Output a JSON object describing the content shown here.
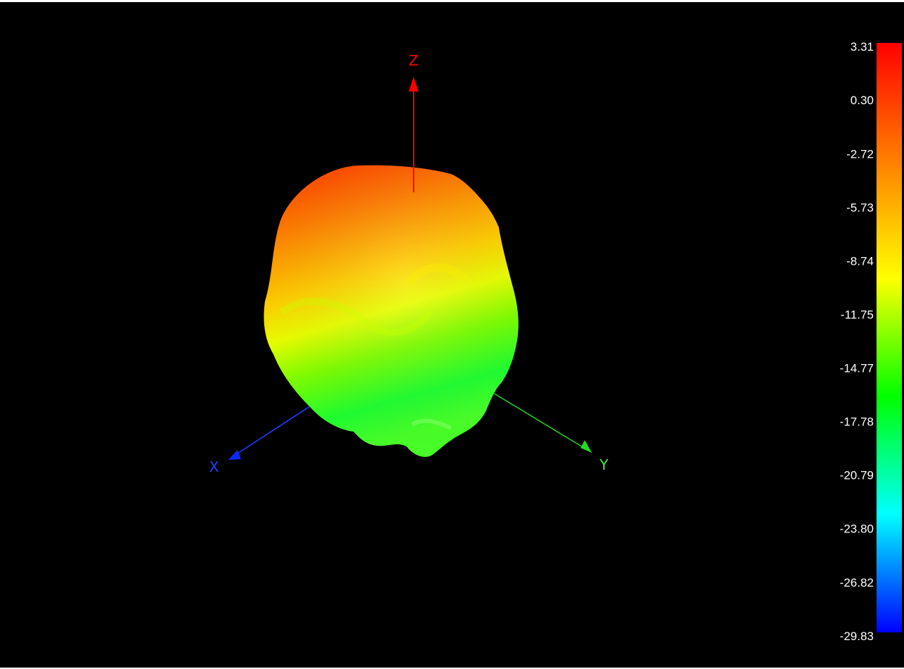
{
  "chart_data": {
    "type": "surface-3d-radiation-pattern",
    "axes": [
      {
        "name": "x-axis",
        "label": "X",
        "color": "#0000ff"
      },
      {
        "name": "y-axis",
        "label": "Y",
        "color": "#00dd00"
      },
      {
        "name": "z-axis",
        "label": "Z",
        "color": "#ff0000"
      }
    ],
    "colorbar": {
      "min": -29.83,
      "max": 3.31,
      "ticks": [
        "3.31",
        "0.30",
        "-2.72",
        "-5.73",
        "-8.74",
        "-11.75",
        "-14.77",
        "-17.78",
        "-20.79",
        "-23.80",
        "-26.82",
        "-29.83"
      ],
      "colormap": [
        "#ff0000",
        "#ff7f00",
        "#ffff00",
        "#00ff00",
        "#00ffff",
        "#0000ff"
      ],
      "placement": "right"
    },
    "background": "#000000"
  }
}
